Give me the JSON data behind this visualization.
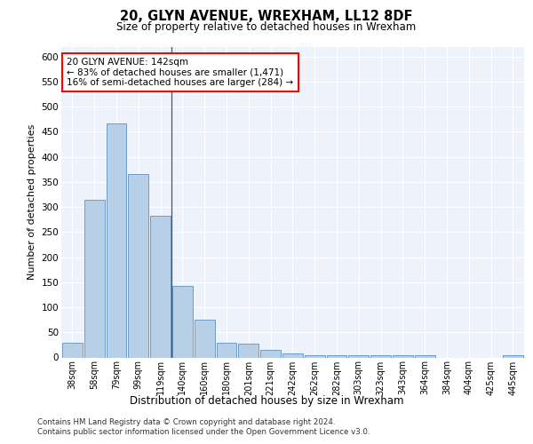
{
  "title1": "20, GLYN AVENUE, WREXHAM, LL12 8DF",
  "title2": "Size of property relative to detached houses in Wrexham",
  "xlabel": "Distribution of detached houses by size in Wrexham",
  "ylabel": "Number of detached properties",
  "categories": [
    "38sqm",
    "58sqm",
    "79sqm",
    "99sqm",
    "119sqm",
    "140sqm",
    "160sqm",
    "180sqm",
    "201sqm",
    "221sqm",
    "242sqm",
    "262sqm",
    "282sqm",
    "303sqm",
    "323sqm",
    "343sqm",
    "364sqm",
    "384sqm",
    "404sqm",
    "425sqm",
    "445sqm"
  ],
  "values": [
    30,
    315,
    467,
    365,
    283,
    142,
    75,
    30,
    27,
    15,
    8,
    5,
    4,
    4,
    4,
    4,
    4,
    0,
    0,
    0,
    5
  ],
  "bar_color": "#b8cfe8",
  "bar_edge_color": "#6090c0",
  "annotation_text": "20 GLYN AVENUE: 142sqm\n← 83% of detached houses are smaller (1,471)\n16% of semi-detached houses are larger (284) →",
  "ylim": [
    0,
    620
  ],
  "yticks": [
    0,
    50,
    100,
    150,
    200,
    250,
    300,
    350,
    400,
    450,
    500,
    550,
    600
  ],
  "footer1": "Contains HM Land Registry data © Crown copyright and database right 2024.",
  "footer2": "Contains public sector information licensed under the Open Government Licence v3.0.",
  "plot_bg_color": "#eef2fb"
}
